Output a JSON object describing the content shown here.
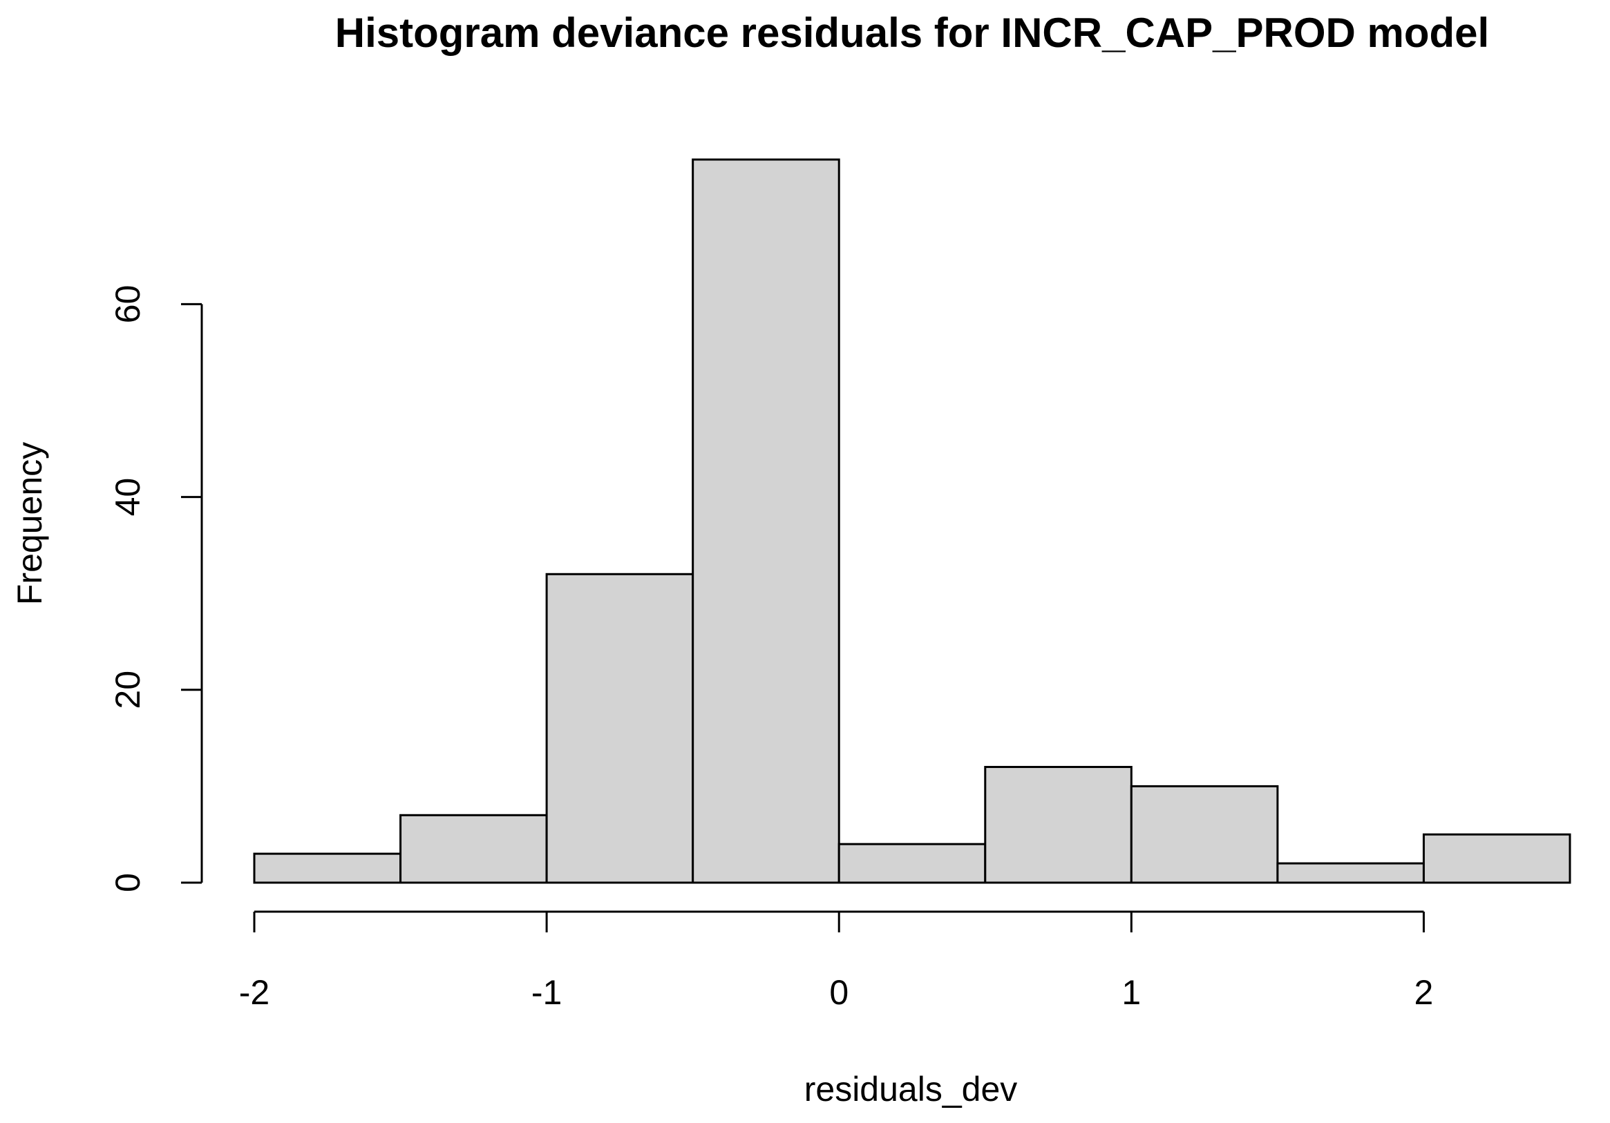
{
  "chart_data": {
    "type": "bar",
    "title": "Histogram deviance residuals for INCR_CAP_PROD model",
    "xlabel": "residuals_dev",
    "ylabel": "Frequency",
    "bins": [
      {
        "from": -2.0,
        "to": -1.5,
        "count": 3
      },
      {
        "from": -1.5,
        "to": -1.0,
        "count": 7
      },
      {
        "from": -1.0,
        "to": -0.5,
        "count": 32
      },
      {
        "from": -0.5,
        "to": 0.0,
        "count": 75
      },
      {
        "from": 0.0,
        "to": 0.5,
        "count": 4
      },
      {
        "from": 0.5,
        "to": 1.0,
        "count": 12
      },
      {
        "from": 1.0,
        "to": 1.5,
        "count": 10
      },
      {
        "from": 1.5,
        "to": 2.0,
        "count": 2
      },
      {
        "from": 2.0,
        "to": 2.5,
        "count": 5
      }
    ],
    "xlim": [
      -2,
      2.5
    ],
    "ylim": [
      0,
      75
    ],
    "x_ticks": [
      -2,
      -1,
      0,
      1,
      2
    ],
    "x_tick_labels": [
      "-2",
      "-1",
      "0",
      "1",
      "2"
    ],
    "y_ticks": [
      0,
      20,
      40,
      60
    ],
    "y_tick_labels": [
      "0",
      "20",
      "40",
      "60"
    ],
    "grid": false,
    "bar_color": "#d3d3d3",
    "edge_color": "#000000"
  }
}
